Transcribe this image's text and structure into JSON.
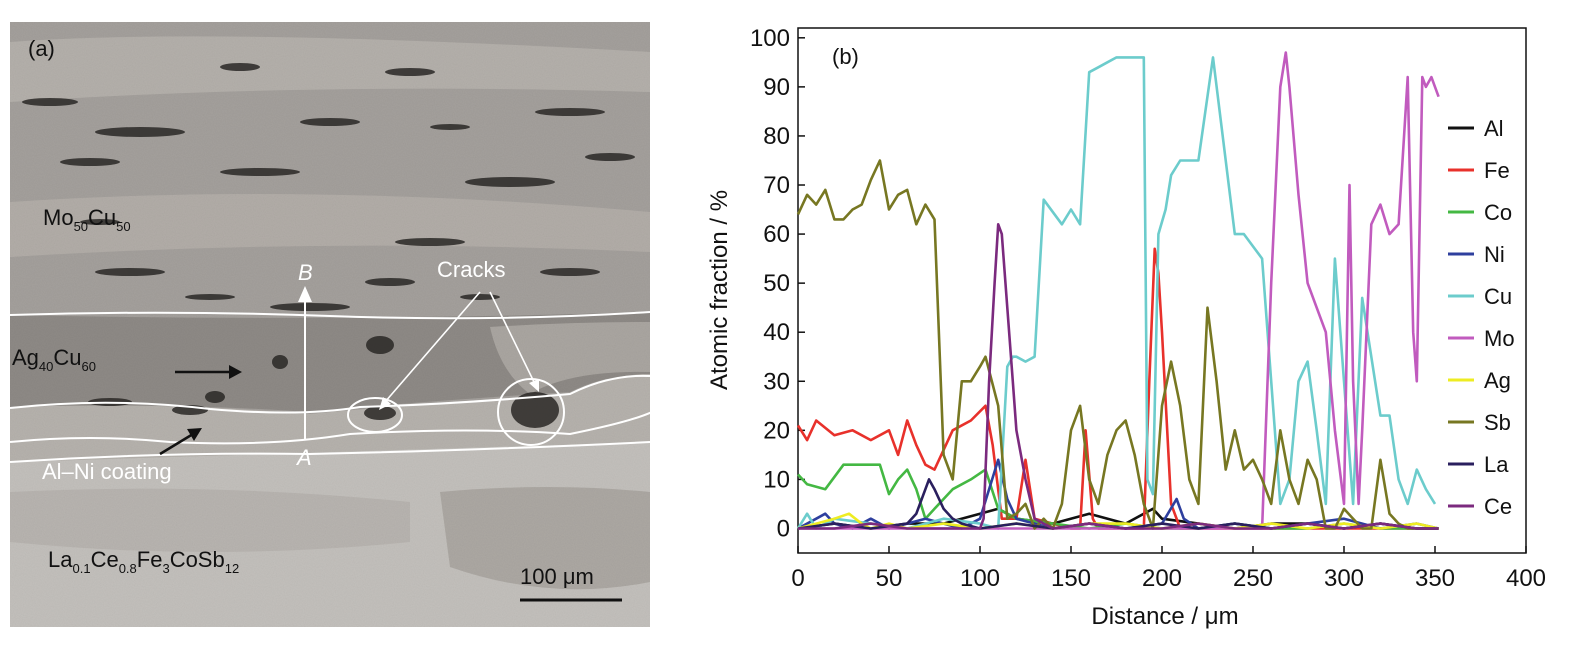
{
  "panel_a": {
    "label": "(a)",
    "layers": {
      "mocu": {
        "base": "Mo",
        "sub1": "50",
        "mid": "Cu",
        "sub2": "50"
      },
      "agcu": {
        "base": "Ag",
        "sub1": "40",
        "mid": "Cu",
        "sub2": "60"
      },
      "alni": "Al–Ni coating",
      "skutterudite": {
        "p1": "La",
        "s1": "0.1",
        "p2": "Ce",
        "s2": "0.8",
        "p3": "Fe",
        "s3": "3",
        "p4": "CoSb",
        "s4": "12"
      }
    },
    "cracks_label": "Cracks",
    "point_a": "A",
    "point_b": "B",
    "scale_bar": "100 μm"
  },
  "panel_b": {
    "label": "(b)"
  },
  "chart_data": {
    "type": "line",
    "xlabel": "Distance / μm",
    "ylabel": "Atomic fraction / %",
    "xlim": [
      0,
      400
    ],
    "ylim": [
      -5,
      102
    ],
    "xticks": [
      0,
      50,
      100,
      150,
      200,
      250,
      300,
      350,
      400
    ],
    "yticks": [
      0,
      10,
      20,
      30,
      40,
      50,
      60,
      70,
      80,
      90,
      100
    ],
    "legend_position": "right",
    "series": [
      {
        "name": "Al",
        "color": "#111111",
        "x": [
          0,
          20,
          40,
          60,
          80,
          100,
          110,
          120,
          140,
          160,
          180,
          195,
          200,
          220,
          240,
          260,
          280,
          300,
          320,
          340,
          352
        ],
        "y": [
          0,
          1,
          0,
          1,
          1,
          3,
          4,
          2,
          1,
          3,
          1,
          4,
          2,
          1,
          0,
          1,
          1,
          0,
          1,
          0,
          0
        ]
      },
      {
        "name": "Fe",
        "color": "#e8312b",
        "x": [
          0,
          5,
          10,
          20,
          30,
          40,
          50,
          55,
          60,
          65,
          70,
          75,
          85,
          95,
          103,
          107,
          112,
          120,
          125,
          130,
          150,
          155,
          158,
          162,
          165,
          190,
          193,
          196,
          198,
          200,
          205,
          210,
          230,
          260,
          290,
          330,
          352
        ],
        "y": [
          21,
          18,
          22,
          19,
          20,
          18,
          20,
          15,
          22,
          17,
          13,
          12,
          20,
          22,
          25,
          17,
          2,
          2,
          14,
          2,
          0,
          0,
          20,
          2,
          0,
          0,
          30,
          57,
          52,
          40,
          5,
          0,
          0,
          0,
          0,
          0,
          0
        ]
      },
      {
        "name": "Co",
        "color": "#44b843",
        "x": [
          0,
          5,
          15,
          25,
          35,
          45,
          50,
          55,
          60,
          65,
          70,
          75,
          80,
          85,
          95,
          103,
          110,
          120,
          140,
          160,
          180,
          200,
          220,
          240,
          260,
          280,
          300,
          320,
          340,
          352
        ],
        "y": [
          11,
          9,
          8,
          13,
          13,
          13,
          7,
          10,
          12,
          8,
          2,
          4,
          6,
          8,
          10,
          12,
          4,
          2,
          1,
          0,
          1,
          0,
          0,
          1,
          0,
          0,
          1,
          0,
          0,
          0
        ]
      },
      {
        "name": "Ni",
        "color": "#2e3f9e",
        "x": [
          0,
          10,
          15,
          20,
          30,
          40,
          50,
          60,
          70,
          80,
          90,
          100,
          105,
          110,
          115,
          120,
          140,
          160,
          180,
          200,
          208,
          212,
          220,
          240,
          260,
          280,
          300,
          320,
          340,
          352
        ],
        "y": [
          0,
          2,
          3,
          1,
          0,
          2,
          0,
          1,
          2,
          1,
          0,
          2,
          8,
          14,
          6,
          2,
          0,
          1,
          0,
          1,
          6,
          2,
          0,
          1,
          0,
          1,
          2,
          0,
          1,
          0
        ]
      },
      {
        "name": "Cu",
        "color": "#6ccccc",
        "x": [
          0,
          5,
          10,
          15,
          20,
          40,
          60,
          80,
          100,
          110,
          115,
          118,
          120,
          125,
          130,
          135,
          145,
          150,
          155,
          160,
          165,
          170,
          175,
          180,
          185,
          190,
          192,
          195,
          198,
          202,
          205,
          210,
          220,
          228,
          240,
          245,
          255,
          265,
          270,
          275,
          280,
          285,
          290,
          295,
          300,
          305,
          310,
          315,
          320,
          325,
          330,
          335,
          340,
          345,
          350
        ],
        "y": [
          0,
          3,
          0,
          1,
          2,
          1,
          0,
          2,
          1,
          0,
          33,
          35,
          35,
          34,
          35,
          67,
          62,
          65,
          62,
          93,
          94,
          95,
          96,
          96,
          96,
          96,
          10,
          7,
          60,
          65,
          72,
          75,
          75,
          96,
          60,
          60,
          55,
          5,
          10,
          30,
          34,
          20,
          5,
          55,
          30,
          5,
          47,
          35,
          23,
          23,
          10,
          5,
          12,
          8,
          5
        ]
      },
      {
        "name": "Mo",
        "color": "#c15bbe",
        "x": [
          0,
          50,
          100,
          150,
          200,
          250,
          255,
          260,
          265,
          268,
          270,
          275,
          280,
          285,
          290,
          295,
          300,
          303,
          305,
          308,
          310,
          315,
          320,
          325,
          330,
          335,
          338,
          340,
          343,
          345,
          348,
          350,
          352
        ],
        "y": [
          0,
          0,
          0,
          0,
          0,
          0,
          0,
          50,
          90,
          97,
          90,
          68,
          50,
          45,
          40,
          20,
          5,
          70,
          30,
          5,
          20,
          62,
          66,
          60,
          62,
          92,
          40,
          30,
          92,
          90,
          92,
          90,
          88
        ]
      },
      {
        "name": "Ag",
        "color": "#eeec22",
        "x": [
          0,
          10,
          20,
          28,
          35,
          40,
          50,
          60,
          80,
          100,
          120,
          140,
          160,
          180,
          200,
          220,
          240,
          260,
          280,
          300,
          320,
          340,
          352
        ],
        "y": [
          0,
          1,
          2,
          3,
          1,
          0,
          1,
          0,
          1,
          0,
          1,
          0,
          1,
          1,
          0,
          1,
          0,
          1,
          0,
          1,
          0,
          1,
          0
        ]
      },
      {
        "name": "Sb",
        "color": "#777722",
        "x": [
          0,
          5,
          10,
          15,
          20,
          25,
          30,
          35,
          40,
          45,
          50,
          55,
          60,
          65,
          70,
          75,
          80,
          85,
          90,
          95,
          100,
          103,
          110,
          115,
          120,
          125,
          130,
          135,
          140,
          145,
          150,
          155,
          160,
          165,
          170,
          175,
          180,
          185,
          190,
          195,
          200,
          205,
          210,
          215,
          220,
          225,
          230,
          235,
          240,
          245,
          250,
          255,
          260,
          265,
          270,
          275,
          280,
          285,
          290,
          295,
          300,
          305,
          310,
          315,
          320,
          325,
          330,
          335,
          340,
          345,
          350,
          352
        ],
        "y": [
          64,
          68,
          66,
          69,
          63,
          63,
          65,
          66,
          71,
          75,
          65,
          68,
          69,
          62,
          66,
          63,
          15,
          10,
          30,
          30,
          33,
          35,
          25,
          2,
          3,
          5,
          0,
          2,
          0,
          5,
          20,
          25,
          10,
          5,
          15,
          20,
          22,
          15,
          5,
          0,
          25,
          34,
          25,
          10,
          5,
          45,
          30,
          12,
          20,
          12,
          14,
          10,
          5,
          20,
          10,
          5,
          14,
          10,
          0,
          0,
          4,
          2,
          0,
          0,
          14,
          3,
          1,
          0,
          0,
          0,
          0,
          0
        ]
      },
      {
        "name": "La",
        "color": "#2a1f5e",
        "x": [
          0,
          20,
          40,
          60,
          65,
          70,
          72,
          75,
          80,
          85,
          90,
          100,
          120,
          140,
          160,
          180,
          200,
          220,
          240,
          260,
          280,
          300,
          320,
          340,
          352
        ],
        "y": [
          0,
          1,
          0,
          1,
          3,
          8,
          10,
          8,
          4,
          2,
          1,
          0,
          1,
          0,
          1,
          0,
          1,
          0,
          1,
          0,
          1,
          0,
          1,
          0,
          0
        ]
      },
      {
        "name": "Ce",
        "color": "#7b2a7e",
        "x": [
          0,
          20,
          40,
          60,
          80,
          100,
          102,
          105,
          108,
          110,
          112,
          115,
          118,
          120,
          125,
          130,
          140,
          160,
          180,
          200,
          220,
          240,
          260,
          280,
          300,
          320,
          340,
          352
        ],
        "y": [
          0,
          0,
          1,
          0,
          0,
          0,
          2,
          30,
          50,
          62,
          60,
          45,
          30,
          20,
          10,
          2,
          0,
          1,
          0,
          0,
          1,
          0,
          0,
          1,
          0,
          1,
          0,
          0
        ]
      }
    ]
  }
}
